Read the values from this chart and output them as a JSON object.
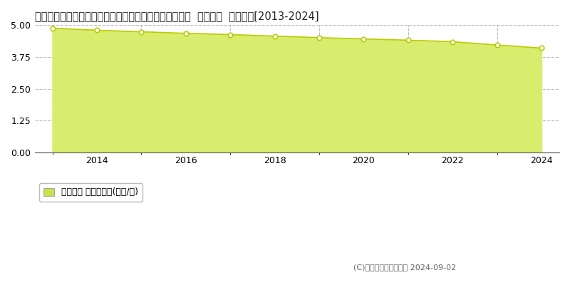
{
  "title": "栃木県下都賀郡壬生町大字壬生甲字車塚３４５３番１外  地価公示  地価推移[2013-2024]",
  "years": [
    2013,
    2014,
    2015,
    2016,
    2017,
    2018,
    2019,
    2020,
    2021,
    2022,
    2023,
    2024
  ],
  "values": [
    4.88,
    4.8,
    4.74,
    4.68,
    4.63,
    4.57,
    4.51,
    4.46,
    4.41,
    4.35,
    4.22,
    4.1
  ],
  "ylim": [
    0,
    5
  ],
  "yticks": [
    0,
    1.25,
    2.5,
    3.75,
    5
  ],
  "fill_color": "#d8ed6e",
  "line_color": "#b8cc00",
  "marker_facecolor": "#ffffff",
  "marker_edgecolor": "#b8cc00",
  "grid_color_h": "#aaaaaa",
  "grid_color_v": "#999999",
  "bg_color": "#ffffff",
  "plot_bg_color": "#f5f5f5",
  "legend_label": "地価公示 平均坪単価(万円/坪)",
  "legend_square_color": "#c8e050",
  "copyright_text": "(C)土地価格ドットコム 2024-09-02",
  "title_fontsize": 10.5,
  "axis_fontsize": 9,
  "legend_fontsize": 9,
  "xlim_left": 2012.6,
  "xlim_right": 2024.4
}
